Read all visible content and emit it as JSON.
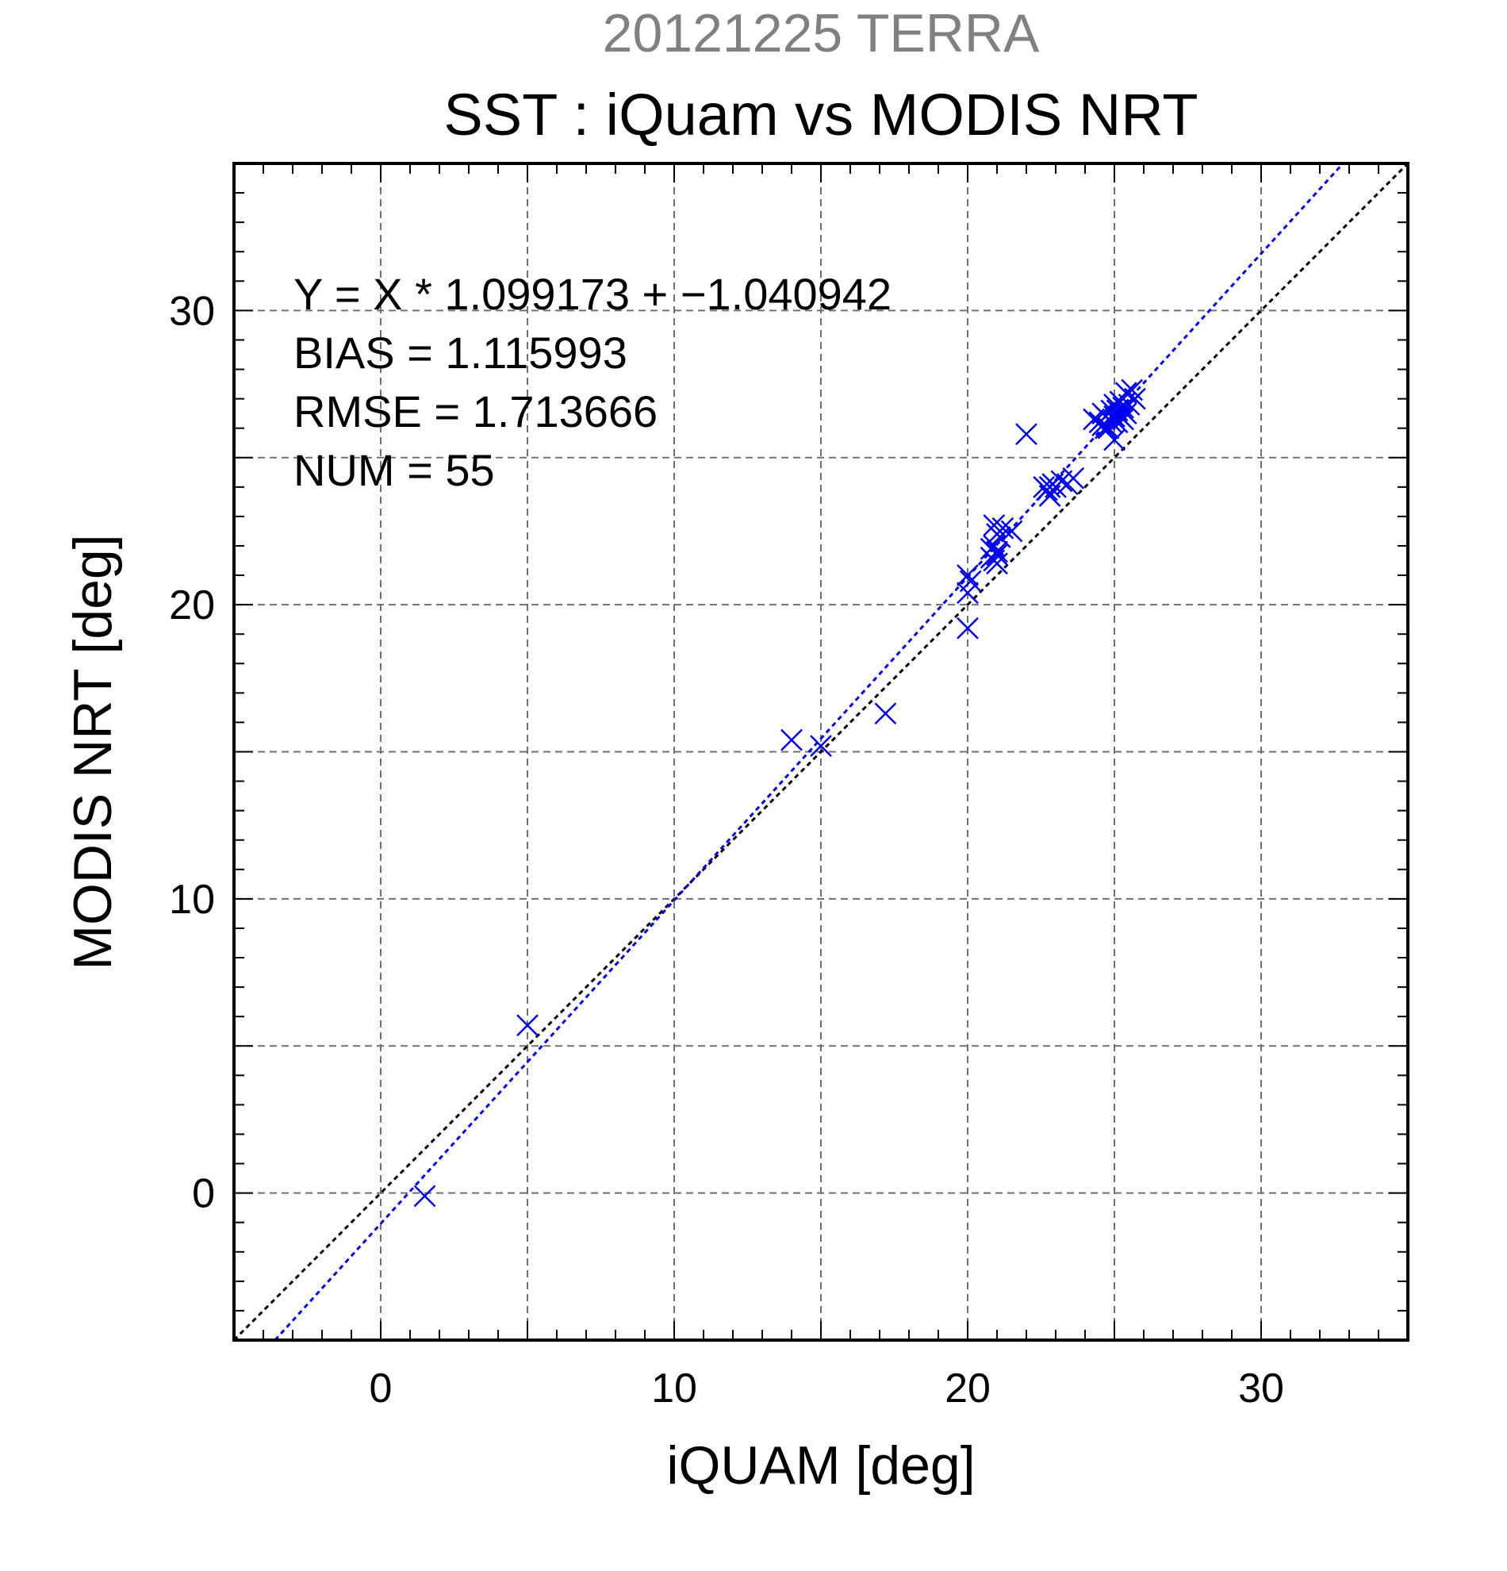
{
  "chart_data": {
    "type": "scatter",
    "title_top": "20121225 TERRA",
    "title": "SST : iQuam vs MODIS NRT",
    "xlabel": "iQUAM [deg]",
    "ylabel": "MODIS NRT [deg]",
    "xlim": [
      -5,
      35
    ],
    "ylim": [
      -5,
      35
    ],
    "x_ticks": [
      0,
      10,
      20,
      30
    ],
    "y_ticks": [
      0,
      10,
      20,
      30
    ],
    "x_tick_labels": [
      "0",
      "10",
      "20",
      "30"
    ],
    "y_tick_labels": [
      "0",
      "10",
      "20",
      "30"
    ],
    "minor_tick_step": 1,
    "grid": true,
    "stats": [
      "Y = X * 1.099173 + −1.040942",
      "BIAS = 1.115993",
      "RMSE = 1.713666",
      "NUM = 55"
    ],
    "regression": {
      "slope": 1.099173,
      "intercept": -1.040942,
      "color": "#0000ee"
    },
    "identity_line": {
      "slope": 1,
      "intercept": 0,
      "color": "#000000"
    },
    "marker": "x",
    "marker_color": "#0000ee",
    "title_top_color": "#808080",
    "points": [
      [
        1.5,
        -0.1
      ],
      [
        5.0,
        5.7
      ],
      [
        14.0,
        15.4
      ],
      [
        15.0,
        15.2
      ],
      [
        17.2,
        16.3
      ],
      [
        20.0,
        19.2
      ],
      [
        20.0,
        20.4
      ],
      [
        20.0,
        21.0
      ],
      [
        20.1,
        20.8
      ],
      [
        20.8,
        21.6
      ],
      [
        20.8,
        21.9
      ],
      [
        20.9,
        21.5
      ],
      [
        20.9,
        22.0
      ],
      [
        21.0,
        21.4
      ],
      [
        21.0,
        21.7
      ],
      [
        21.0,
        22.4
      ],
      [
        20.9,
        22.7
      ],
      [
        21.1,
        22.3
      ],
      [
        21.2,
        22.6
      ],
      [
        21.5,
        22.5
      ],
      [
        22.0,
        25.8
      ],
      [
        22.6,
        24.0
      ],
      [
        22.7,
        23.9
      ],
      [
        22.8,
        23.7
      ],
      [
        22.9,
        24.1
      ],
      [
        23.0,
        24.0
      ],
      [
        23.2,
        24.2
      ],
      [
        23.4,
        24.1
      ],
      [
        23.6,
        24.3
      ],
      [
        24.3,
        26.3
      ],
      [
        24.5,
        26.2
      ],
      [
        24.6,
        26.1
      ],
      [
        24.7,
        26.4
      ],
      [
        24.8,
        26.0
      ],
      [
        24.8,
        26.3
      ],
      [
        24.9,
        26.6
      ],
      [
        25.0,
        25.6
      ],
      [
        25.0,
        26.8
      ],
      [
        25.1,
        26.2
      ],
      [
        25.1,
        26.6
      ],
      [
        25.2,
        26.9
      ],
      [
        25.2,
        26.4
      ],
      [
        25.3,
        26.7
      ],
      [
        25.3,
        26.3
      ],
      [
        25.4,
        26.5
      ],
      [
        25.4,
        27.2
      ],
      [
        25.5,
        26.8
      ],
      [
        25.6,
        27.3
      ],
      [
        25.7,
        27.0
      ],
      [
        24.6,
        26.5
      ],
      [
        24.7,
        26.0
      ],
      [
        24.9,
        26.2
      ],
      [
        25.0,
        26.4
      ],
      [
        22.8,
        24.0
      ],
      [
        21.0,
        21.8
      ]
    ]
  }
}
